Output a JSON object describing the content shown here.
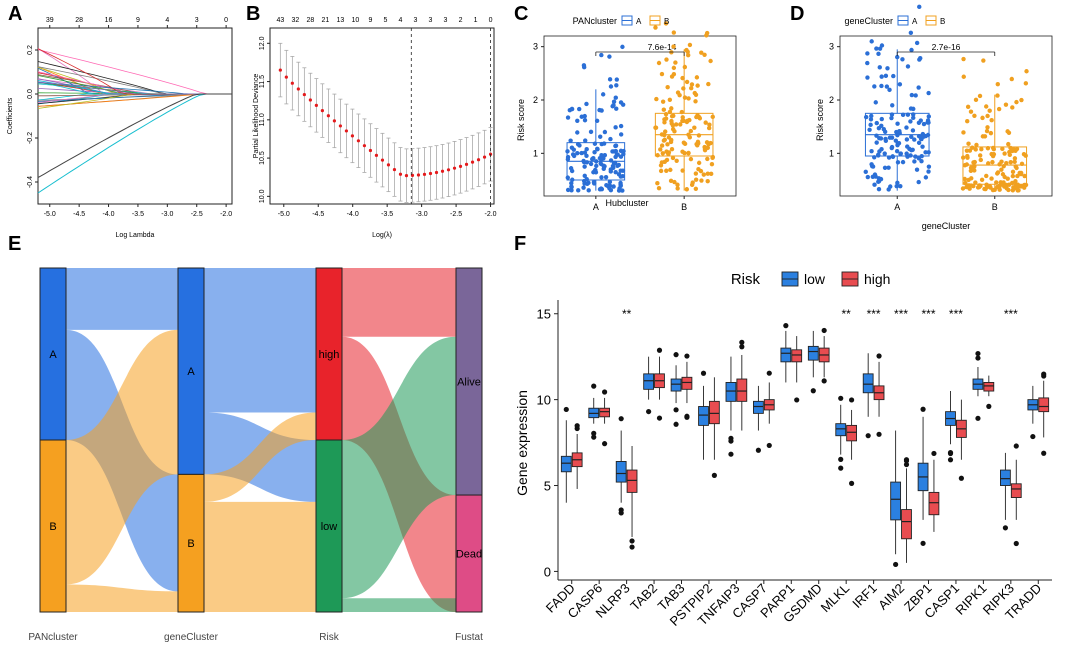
{
  "panels": {
    "A": {
      "letter": "A",
      "type": "lasso-coefficient-paths",
      "xlabel": "Log Lambda",
      "ylabel": "Coefficients",
      "top_ticks": [
        "39",
        "28",
        "16",
        "9",
        "4",
        "3",
        "0"
      ],
      "xticks": [
        "-5.0",
        "-4.5",
        "-4.0",
        "-3.5",
        "-3.0",
        "-2.5",
        "-2.0"
      ],
      "yticks": [
        "-0.4",
        "-0.2",
        "0.0",
        "0.2"
      ],
      "xlim": [
        -5.2,
        -1.9
      ],
      "ylim": [
        -0.5,
        0.3
      ]
    },
    "B": {
      "letter": "B",
      "type": "cv-deviance",
      "xlabel": "Log(λ)",
      "ylabel": "Partial Likelihood Deviance",
      "top_ticks": [
        "43",
        "32",
        "28",
        "21",
        "13",
        "10",
        "9",
        "5",
        "4",
        "3",
        "3",
        "3",
        "2",
        "1",
        "0"
      ],
      "xticks": [
        "-5.0",
        "-4.5",
        "-4.0",
        "-3.5",
        "-3.0",
        "-2.5",
        "-2.0"
      ],
      "yticks": [
        "10.0",
        "10.5",
        "11.0",
        "11.5",
        "12.0"
      ],
      "xlim": [
        -5.2,
        -1.95
      ],
      "ylim": [
        9.9,
        12.2
      ],
      "log_lambda_min": -3.15,
      "log_lambda_1se": -2.0
    },
    "C": {
      "letter": "C",
      "type": "boxplot",
      "legend_title": "PANcluster",
      "legend_items": [
        "A",
        "B"
      ],
      "pvalue": "7.6e-14",
      "xlabel": "Hubcluster",
      "ylabel": "Risk score",
      "categories": [
        "A",
        "B"
      ],
      "yticks": [
        "1",
        "2",
        "3"
      ],
      "ylim": [
        0.2,
        3.2
      ],
      "colors": [
        "#2b6fd6",
        "#f0a020"
      ],
      "boxes": [
        {
          "name": "A",
          "min": 0.3,
          "q1": 0.5,
          "median": 0.85,
          "q3": 1.2,
          "max": 2.2
        },
        {
          "name": "B",
          "min": 0.3,
          "q1": 0.95,
          "median": 1.35,
          "q3": 1.75,
          "max": 2.95
        }
      ]
    },
    "D": {
      "letter": "D",
      "type": "boxplot",
      "legend_title": "geneCluster",
      "legend_items": [
        "A",
        "B"
      ],
      "pvalue": "2.7e-16",
      "xlabel": "geneCluster",
      "ylabel": "Risk score",
      "categories": [
        "A",
        "B"
      ],
      "yticks": [
        "1",
        "2",
        "3"
      ],
      "ylim": [
        0.2,
        3.2
      ],
      "colors": [
        "#2b6fd6",
        "#f0a020"
      ],
      "boxes": [
        {
          "name": "A",
          "min": 0.3,
          "q1": 0.95,
          "median": 1.35,
          "q3": 1.75,
          "max": 2.95
        },
        {
          "name": "B",
          "min": 0.3,
          "q1": 0.42,
          "median": 0.78,
          "q3": 1.12,
          "max": 2.1
        }
      ]
    },
    "E": {
      "letter": "E",
      "type": "sankey",
      "axes": [
        "PANcluster",
        "geneCluster",
        "Risk",
        "Fustat"
      ],
      "nodes": [
        {
          "axis": 0,
          "label": "A",
          "start": 0.0,
          "end": 0.5,
          "color": "#2670e0"
        },
        {
          "axis": 0,
          "label": "B",
          "start": 0.5,
          "end": 1.0,
          "color": "#f5a020"
        },
        {
          "axis": 1,
          "label": "A",
          "start": 0.0,
          "end": 0.6,
          "color": "#2670e0"
        },
        {
          "axis": 1,
          "label": "B",
          "start": 0.6,
          "end": 1.0,
          "color": "#f5a020"
        },
        {
          "axis": 2,
          "label": "high",
          "start": 0.0,
          "end": 0.5,
          "color": "#e8232b"
        },
        {
          "axis": 2,
          "label": "low",
          "start": 0.5,
          "end": 1.0,
          "color": "#1e9957"
        },
        {
          "axis": 3,
          "label": "Alive",
          "start": 0.0,
          "end": 0.66,
          "color": "#7a6699"
        },
        {
          "axis": 3,
          "label": "Dead",
          "start": 0.66,
          "end": 1.0,
          "color": "#de4c86"
        }
      ],
      "colors": {
        "A": "#2670e0",
        "B": "#f5a020",
        "high": "#e8232b",
        "low": "#1e9957"
      }
    },
    "F": {
      "letter": "F",
      "type": "grouped-boxplot",
      "legend_title": "Risk",
      "legend_items": [
        "low",
        "high"
      ],
      "colors": {
        "low": "#2b80e0",
        "high": "#e84c50"
      },
      "ylabel": "Gene expression",
      "yticks": [
        "0",
        "5",
        "10",
        "15"
      ],
      "ylim": [
        -0.5,
        15.8
      ],
      "genes": [
        "FADD",
        "CASP6",
        "NLRP3",
        "TAB2",
        "TAB3",
        "PSTPIP2",
        "TNFAIP3",
        "CASP7",
        "PARP1",
        "GSDMD",
        "MLKL",
        "IRF1",
        "AIM2",
        "ZBP1",
        "CASP1",
        "RIPK1",
        "RIPK3",
        "TRADD"
      ],
      "significance": [
        "",
        "",
        "**",
        "",
        "",
        "",
        "",
        "",
        "",
        "",
        "**",
        "***",
        "***",
        "***",
        "***",
        "",
        "***",
        ""
      ],
      "low": [
        [
          4.0,
          5.8,
          6.3,
          6.7,
          8.8
        ],
        [
          8.6,
          8.95,
          9.2,
          9.5,
          10.1
        ],
        [
          4.0,
          5.2,
          5.7,
          6.4,
          8.2
        ],
        [
          10.0,
          10.6,
          11.1,
          11.5,
          12.5
        ],
        [
          9.8,
          10.5,
          10.9,
          11.2,
          12.0
        ],
        [
          6.5,
          8.5,
          9.1,
          9.6,
          10.8
        ],
        [
          8.2,
          9.9,
          10.5,
          11.0,
          12.5
        ],
        [
          8.2,
          9.2,
          9.6,
          9.9,
          10.8
        ],
        [
          11.0,
          12.2,
          12.7,
          13.0,
          14.0
        ],
        [
          11.3,
          12.3,
          12.8,
          13.1,
          14.0
        ],
        [
          6.8,
          7.9,
          8.3,
          8.6,
          9.7
        ],
        [
          9.0,
          10.4,
          10.9,
          11.5,
          12.7
        ],
        [
          1.0,
          3.0,
          4.2,
          5.2,
          8.2
        ],
        [
          3.0,
          4.7,
          5.5,
          6.3,
          9.0
        ],
        [
          7.4,
          8.5,
          8.9,
          9.3,
          10.5
        ],
        [
          10.2,
          10.6,
          10.9,
          11.2,
          11.9
        ],
        [
          3.0,
          5.0,
          5.4,
          5.9,
          6.9
        ],
        [
          8.6,
          9.4,
          9.7,
          10.0,
          10.8
        ]
      ],
      "high": [
        [
          4.8,
          6.1,
          6.5,
          6.9,
          8.0
        ],
        [
          8.6,
          9.0,
          9.3,
          9.5,
          10.1
        ],
        [
          2.0,
          4.6,
          5.3,
          5.9,
          7.3
        ],
        [
          10.0,
          10.7,
          11.1,
          11.5,
          12.5
        ],
        [
          9.8,
          10.6,
          11.0,
          11.3,
          12.2
        ],
        [
          6.5,
          8.6,
          9.2,
          9.9,
          11.3
        ],
        [
          8.2,
          9.9,
          10.5,
          11.2,
          12.6
        ],
        [
          8.6,
          9.4,
          9.7,
          10.0,
          11.0
        ],
        [
          11.0,
          12.2,
          12.6,
          12.9,
          13.7
        ],
        [
          11.3,
          12.2,
          12.6,
          13.0,
          13.7
        ],
        [
          6.5,
          7.6,
          8.1,
          8.5,
          9.4
        ],
        [
          9.0,
          10.0,
          10.4,
          10.8,
          12.2
        ],
        [
          0.5,
          1.9,
          2.9,
          3.6,
          6.0
        ],
        [
          2.3,
          3.3,
          4.0,
          4.6,
          6.5
        ],
        [
          6.5,
          7.8,
          8.3,
          8.8,
          10.0
        ],
        [
          10.2,
          10.5,
          10.8,
          11.0,
          11.4
        ],
        [
          3.0,
          4.3,
          4.8,
          5.1,
          6.5
        ],
        [
          7.8,
          9.3,
          9.6,
          10.1,
          11.1
        ]
      ]
    }
  }
}
